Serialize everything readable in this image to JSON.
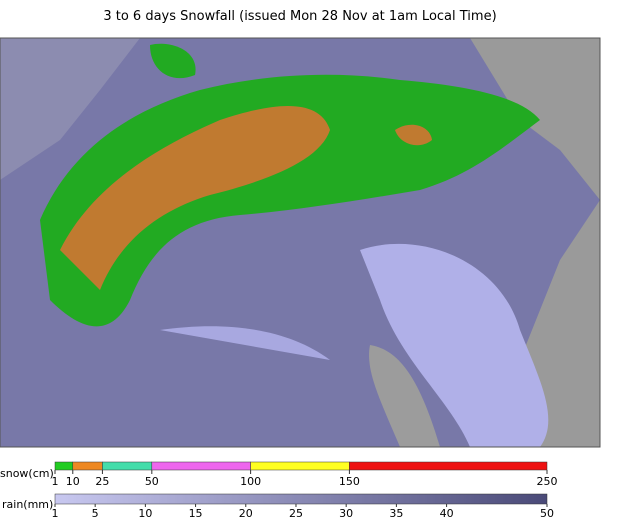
{
  "title": "3 to 6 days Snowfall (issued Mon 28 Nov at 1am Local Time)",
  "snow_legend": {
    "label": "snow(cm)",
    "ticks": [
      1,
      10,
      25,
      50,
      100,
      150,
      250
    ],
    "colors": [
      "#22cc22",
      "#ee8822",
      "#44ddaa",
      "#ee66ee",
      "#ffff22",
      "#ee1111"
    ]
  },
  "rain_legend": {
    "label": "rain(mm)",
    "ticks": [
      1,
      5,
      10,
      15,
      20,
      25,
      30,
      35,
      40,
      50
    ],
    "colors": [
      "#c8c8f0",
      "#4a4a78"
    ]
  }
}
